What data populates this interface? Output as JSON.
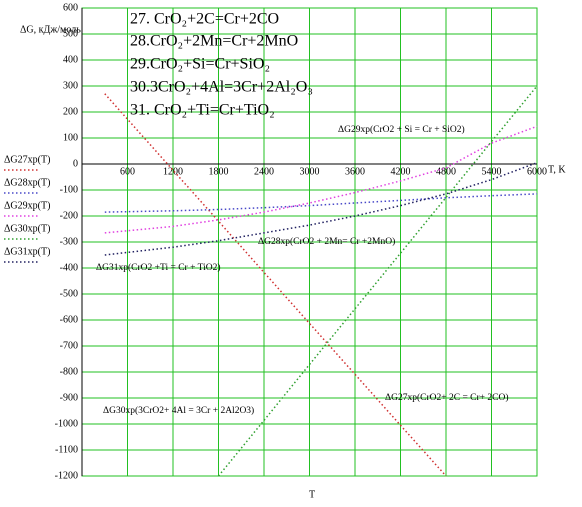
{
  "chart_data": {
    "type": "line",
    "y_label": "ΔG, кДж/моль",
    "x_label": "T, K",
    "x_axis_title": "T",
    "equations": [
      "27. CrO₂+2C=Cr+2CO",
      "28.CrO₂+2Mn=Cr+2MnO",
      "29.CrO₂+Si=Cr+SiO₂",
      "30.3CrO₂+4Al=3Cr+2Al₂O₃",
      "31. CrO₂+Ti=Cr+TiO₂"
    ],
    "annotations": [
      "ΔG29хр(CrO2 + Si = Cr + SiO2)",
      "ΔG28хр(CrO2 + 2Mn= Cr +2MnO)",
      "ΔG31хр(CrO2 +Ti = Cr + TiO2)",
      "ΔG30хр(3CrO2+ 4Al = 3Cr + 2Al2O3)",
      "ΔG27хр(CrO2+ 2C = Cr+ 2CO)"
    ],
    "x": [
      300,
      1200,
      1800,
      2400,
      3000,
      3600,
      4200,
      4800,
      5400,
      6000
    ],
    "series": [
      {
        "name": "ΔG27хр(T)",
        "color": "#d03030",
        "values": [
          270,
          -24,
          -220,
          -417,
          -613,
          -809,
          -1005,
          -1200,
          null,
          null
        ]
      },
      {
        "name": "ΔG28хр(T)",
        "color": "#4848c8",
        "values": [
          -185,
          -180,
          -175,
          -168,
          -160,
          -150,
          -140,
          -130,
          -122,
          -115
        ]
      },
      {
        "name": "ΔG29хр(T)",
        "color": "#e040e0",
        "values": [
          -265,
          -240,
          -215,
          -185,
          -150,
          -110,
          -65,
          -15,
          80,
          145
        ]
      },
      {
        "name": "ΔG30хр(T)",
        "color": "#30a030",
        "values": [
          null,
          null,
          -1200,
          -986,
          -771,
          -557,
          -343,
          -129,
          86,
          300
        ]
      },
      {
        "name": "ΔG31хр(T)",
        "color": "#202060",
        "values": [
          -350,
          -320,
          -295,
          -265,
          -235,
          -200,
          -160,
          -115,
          -60,
          5
        ]
      }
    ],
    "xlim": [
      0,
      6000
    ],
    "xticks": [
      600,
      1200,
      1800,
      2400,
      3000,
      3600,
      4200,
      4800,
      5400,
      6000
    ],
    "ylim": [
      -1200,
      600
    ],
    "yticks": [
      -1200,
      -1100,
      -1000,
      -900,
      -800,
      -700,
      -600,
      -500,
      -400,
      -300,
      -200,
      -100,
      0,
      100,
      200,
      300,
      400,
      500,
      600
    ],
    "grid": true
  }
}
